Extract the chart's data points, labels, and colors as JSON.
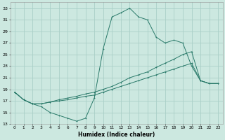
{
  "xlabel": "Humidex (Indice chaleur)",
  "bg_color": "#cce8e0",
  "grid_color": "#aacfc8",
  "line_color": "#2a7a6a",
  "xlim": [
    -0.5,
    23.5
  ],
  "ylim": [
    13,
    34
  ],
  "yticks": [
    13,
    15,
    17,
    19,
    21,
    23,
    25,
    27,
    29,
    31,
    33
  ],
  "xticks": [
    0,
    1,
    2,
    3,
    4,
    5,
    6,
    7,
    8,
    9,
    10,
    11,
    12,
    13,
    14,
    15,
    16,
    17,
    18,
    19,
    20,
    21,
    22,
    23
  ],
  "curve1_x": [
    0,
    1,
    2,
    3,
    4,
    5,
    6,
    7,
    8,
    9,
    10,
    11,
    12,
    13,
    14,
    15,
    16,
    17,
    18,
    19,
    20,
    21,
    22,
    23
  ],
  "curve1_y": [
    18.5,
    17.2,
    16.5,
    16.0,
    15.0,
    14.5,
    14.0,
    13.5,
    14.0,
    17.5,
    26.0,
    31.5,
    32.2,
    33.0,
    31.5,
    31.0,
    28.0,
    27.0,
    27.5,
    27.0,
    23.0,
    20.5,
    20.0,
    20.0
  ],
  "curve2_x": [
    0,
    1,
    2,
    3,
    4,
    5,
    6,
    7,
    8,
    9,
    10,
    11,
    12,
    13,
    14,
    15,
    16,
    17,
    18,
    19,
    20,
    21,
    22,
    23
  ],
  "curve2_y": [
    18.5,
    17.2,
    16.5,
    16.5,
    16.8,
    17.0,
    17.2,
    17.5,
    17.8,
    18.0,
    18.5,
    19.0,
    19.5,
    20.0,
    20.5,
    21.0,
    21.5,
    22.0,
    22.5,
    23.0,
    23.5,
    20.5,
    20.0,
    20.0
  ],
  "curve3_x": [
    0,
    1,
    2,
    3,
    4,
    5,
    6,
    7,
    8,
    9,
    10,
    11,
    12,
    13,
    14,
    15,
    16,
    17,
    18,
    19,
    20,
    21,
    22,
    23
  ],
  "curve3_y": [
    18.5,
    17.2,
    16.5,
    16.5,
    16.8,
    17.2,
    17.5,
    17.8,
    18.2,
    18.5,
    19.0,
    19.5,
    20.2,
    21.0,
    21.5,
    22.0,
    22.8,
    23.5,
    24.2,
    25.0,
    25.5,
    20.5,
    20.0,
    20.0
  ]
}
